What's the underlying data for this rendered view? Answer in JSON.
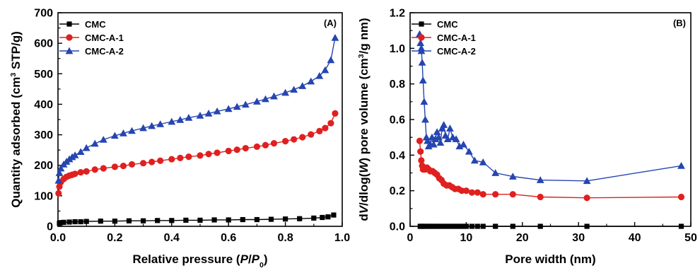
{
  "colors": {
    "CMC": "#000000",
    "CMC-A-1": "#e02020",
    "CMC-A-2": "#2545b0"
  },
  "chart_data": [
    {
      "type": "line",
      "panel_label": "(A)",
      "xlabel_parts": [
        "Relative pressure (",
        "P",
        "/",
        "P",
        "0",
        ")"
      ],
      "ylabel_parts": [
        "Quantity adsorbed (cm",
        "3",
        " STP/g)"
      ],
      "xlim": [
        0,
        1.0
      ],
      "ylim": [
        0,
        700
      ],
      "xticks": [
        0.0,
        0.2,
        0.4,
        0.6,
        0.8,
        1.0
      ],
      "xtick_labels": [
        "0.0",
        "0.2",
        "0.4",
        "0.6",
        "0.8",
        "1.0"
      ],
      "yticks": [
        0,
        100,
        200,
        300,
        400,
        500,
        600,
        700
      ],
      "ytick_labels": [
        "0",
        "100",
        "200",
        "300",
        "400",
        "500",
        "600",
        "700"
      ],
      "legend_position": "top-left",
      "series": [
        {
          "name": "CMC",
          "marker": "square",
          "x": [
            0.005,
            0.01,
            0.02,
            0.04,
            0.06,
            0.08,
            0.1,
            0.15,
            0.2,
            0.25,
            0.3,
            0.35,
            0.4,
            0.45,
            0.5,
            0.55,
            0.6,
            0.65,
            0.7,
            0.75,
            0.8,
            0.85,
            0.9,
            0.93,
            0.95,
            0.97
          ],
          "y": [
            10,
            12,
            13,
            14,
            15,
            15,
            16,
            17,
            17,
            18,
            18,
            19,
            19,
            20,
            20,
            21,
            21,
            22,
            22,
            23,
            24,
            25,
            27,
            29,
            31,
            37
          ]
        },
        {
          "name": "CMC-A-1",
          "marker": "circle",
          "x": [
            0.002,
            0.005,
            0.01,
            0.02,
            0.03,
            0.04,
            0.05,
            0.06,
            0.08,
            0.1,
            0.13,
            0.16,
            0.2,
            0.23,
            0.26,
            0.3,
            0.33,
            0.36,
            0.4,
            0.43,
            0.46,
            0.5,
            0.53,
            0.56,
            0.6,
            0.63,
            0.66,
            0.7,
            0.73,
            0.76,
            0.8,
            0.83,
            0.86,
            0.89,
            0.92,
            0.94,
            0.96,
            0.975
          ],
          "y": [
            108,
            130,
            145,
            155,
            162,
            166,
            169,
            172,
            177,
            180,
            186,
            190,
            195,
            198,
            203,
            207,
            211,
            215,
            220,
            224,
            228,
            232,
            237,
            241,
            247,
            251,
            256,
            261,
            266,
            272,
            279,
            285,
            292,
            301,
            312,
            322,
            338,
            370
          ]
        },
        {
          "name": "CMC-A-2",
          "marker": "triangle",
          "x": [
            0.002,
            0.005,
            0.01,
            0.02,
            0.03,
            0.04,
            0.05,
            0.06,
            0.08,
            0.1,
            0.13,
            0.16,
            0.2,
            0.23,
            0.26,
            0.3,
            0.33,
            0.36,
            0.4,
            0.43,
            0.46,
            0.5,
            0.53,
            0.56,
            0.6,
            0.63,
            0.66,
            0.7,
            0.73,
            0.76,
            0.8,
            0.83,
            0.86,
            0.89,
            0.92,
            0.94,
            0.96,
            0.975
          ],
          "y": [
            150,
            175,
            190,
            203,
            212,
            220,
            227,
            233,
            244,
            257,
            271,
            284,
            297,
            305,
            313,
            322,
            329,
            335,
            343,
            349,
            356,
            363,
            370,
            377,
            385,
            392,
            399,
            409,
            417,
            426,
            438,
            448,
            460,
            475,
            493,
            512,
            545,
            618
          ]
        }
      ]
    },
    {
      "type": "line",
      "panel_label": "(B)",
      "xlabel_parts": [
        "Pore width (nm)"
      ],
      "ylabel_parts": [
        "d",
        "V",
        "/dlog(",
        "W",
        ") pore volume (cm",
        "3",
        "/g nm)"
      ],
      "xlim": [
        0,
        50
      ],
      "ylim": [
        0,
        1.2
      ],
      "xticks": [
        0,
        10,
        20,
        30,
        40,
        50
      ],
      "xtick_labels": [
        "0",
        "10",
        "20",
        "30",
        "40",
        "50"
      ],
      "yticks": [
        0.0,
        0.2,
        0.4,
        0.6,
        0.8,
        1.0,
        1.2
      ],
      "ytick_labels": [
        "0.0",
        "0.2",
        "0.4",
        "0.6",
        "0.8",
        "1.0",
        "1.2"
      ],
      "legend_position": "top-left",
      "series": [
        {
          "name": "CMC",
          "marker": "square",
          "x": [
            1.8,
            2.0,
            2.3,
            2.6,
            3.0,
            3.4,
            3.8,
            4.2,
            4.6,
            5.0,
            5.5,
            6.0,
            6.5,
            7.0,
            7.5,
            8.0,
            8.5,
            9.0,
            9.5,
            10.0,
            11.0,
            12.0,
            13.0,
            15.2,
            18.3,
            23.2,
            31.5,
            48.3
          ],
          "y": [
            0.0,
            0.0,
            0.0,
            0.0,
            0.0,
            0.0,
            0.0,
            0.0,
            0.0,
            0.0,
            0.0,
            0.0,
            0.0,
            0.0,
            0.0,
            0.0,
            0.0,
            0.0,
            0.0,
            0.0,
            0.0,
            0.0,
            0.0,
            0.0,
            0.0,
            0.0,
            0.0,
            0.0
          ]
        },
        {
          "name": "CMC-A-1",
          "marker": "circle",
          "x": [
            1.7,
            1.85,
            2.0,
            2.15,
            2.3,
            2.5,
            2.7,
            3.0,
            3.3,
            3.6,
            4.0,
            4.4,
            4.8,
            5.2,
            5.6,
            6.0,
            6.5,
            7.0,
            7.5,
            8.0,
            8.6,
            9.2,
            10.0,
            11.0,
            12.0,
            13.0,
            15.2,
            18.3,
            23.2,
            31.5,
            48.3
          ],
          "y": [
            0.48,
            0.42,
            0.37,
            0.34,
            0.32,
            0.33,
            0.32,
            0.33,
            0.32,
            0.31,
            0.31,
            0.3,
            0.29,
            0.27,
            0.26,
            0.24,
            0.23,
            0.23,
            0.22,
            0.21,
            0.21,
            0.2,
            0.2,
            0.19,
            0.19,
            0.18,
            0.18,
            0.18,
            0.165,
            0.16,
            0.165
          ]
        },
        {
          "name": "CMC-A-2",
          "marker": "triangle",
          "x": [
            1.7,
            1.85,
            2.0,
            2.15,
            2.3,
            2.5,
            2.7,
            2.9,
            3.1,
            3.3,
            3.6,
            3.9,
            4.2,
            4.5,
            4.8,
            5.1,
            5.4,
            5.7,
            6.0,
            6.3,
            6.7,
            7.1,
            7.6,
            8.2,
            8.8,
            9.5,
            10.5,
            11.5,
            13.0,
            15.2,
            18.3,
            23.2,
            31.5,
            48.3
          ],
          "y": [
            1.08,
            1.03,
            1.0,
            0.92,
            0.82,
            0.7,
            0.6,
            0.5,
            0.48,
            0.45,
            0.46,
            0.5,
            0.46,
            0.49,
            0.53,
            0.5,
            0.47,
            0.55,
            0.57,
            0.51,
            0.49,
            0.55,
            0.5,
            0.49,
            0.45,
            0.46,
            0.42,
            0.37,
            0.36,
            0.3,
            0.28,
            0.26,
            0.255,
            0.34
          ]
        }
      ]
    }
  ]
}
